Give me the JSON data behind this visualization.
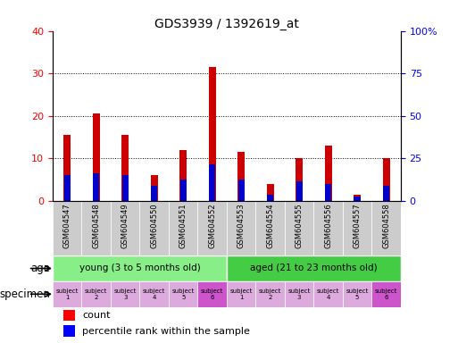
{
  "title": "GDS3939 / 1392619_at",
  "samples": [
    "GSM604547",
    "GSM604548",
    "GSM604549",
    "GSM604550",
    "GSM604551",
    "GSM604552",
    "GSM604553",
    "GSM604554",
    "GSM604555",
    "GSM604556",
    "GSM604557",
    "GSM604558"
  ],
  "count_values": [
    15.5,
    20.5,
    15.5,
    6.0,
    12.0,
    31.5,
    11.5,
    4.0,
    10.0,
    13.0,
    1.5,
    10.0
  ],
  "percentile_values": [
    6.0,
    6.5,
    6.0,
    3.5,
    5.0,
    8.5,
    5.0,
    1.5,
    4.5,
    4.0,
    1.0,
    3.5
  ],
  "ylim_left": [
    0,
    40
  ],
  "ylim_right": [
    0,
    100
  ],
  "yticks_left": [
    0,
    10,
    20,
    30,
    40
  ],
  "yticks_right": [
    0,
    25,
    50,
    75,
    100
  ],
  "ytick_labels_right": [
    "0",
    "25",
    "50",
    "75",
    "100%"
  ],
  "count_color": "#cc0000",
  "percentile_color": "#0000cc",
  "age_young_color": "#88ee88",
  "age_aged_color": "#44cc44",
  "specimen_colors": [
    "#ddaadd",
    "#ddaadd",
    "#ddaadd",
    "#ddaadd",
    "#ddaadd",
    "#cc55cc",
    "#ddaadd",
    "#ddaadd",
    "#ddaadd",
    "#ddaadd",
    "#ddaadd",
    "#cc55cc"
  ],
  "age_row_label": "age",
  "specimen_row_label": "specimen",
  "age_young_label": "young (3 to 5 months old)",
  "age_aged_label": "aged (21 to 23 months old)",
  "subject_labels": [
    "subject\n1",
    "subject\n2",
    "subject\n3",
    "subject\n4",
    "subject\n5",
    "subject\n6",
    "subject\n1",
    "subject\n2",
    "subject\n3",
    "subject\n4",
    "subject\n5",
    "subject\n6"
  ],
  "legend_count": "count",
  "legend_percentile": "percentile rank within the sample",
  "bar_width": 0.25,
  "blue_marker_size": 0.5
}
